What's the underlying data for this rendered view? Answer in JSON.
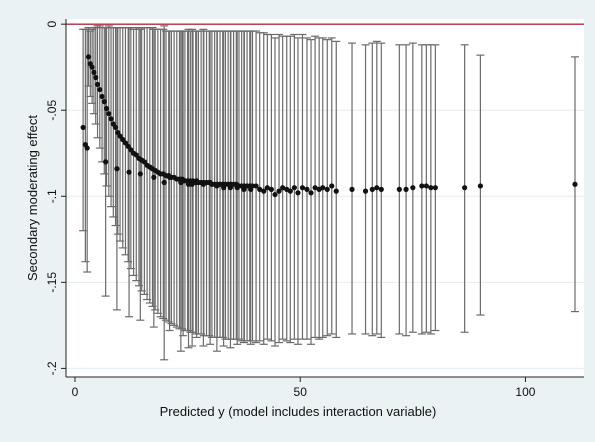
{
  "chart_data": {
    "type": "scatter",
    "title": "",
    "xlabel": "Predicted y (model includes interaction variable)",
    "ylabel": "Secondary moderating effect",
    "xlim": [
      -2,
      113
    ],
    "ylim": [
      -0.205,
      0.003
    ],
    "x_ticks": [
      {
        "value": 0,
        "label": "0"
      },
      {
        "value": 50,
        "label": "50"
      },
      {
        "value": 100,
        "label": "100"
      }
    ],
    "y_ticks": [
      {
        "value": 0,
        "label": "0"
      },
      {
        "value": -0.05,
        "label": "-.05"
      },
      {
        "value": -0.1,
        "label": "-.1"
      },
      {
        "value": -0.15,
        "label": "-.15"
      },
      {
        "value": -0.2,
        "label": "-.2"
      }
    ],
    "grid": true,
    "reference_line": {
      "y": 0,
      "color": "#b22b3e"
    },
    "colors": {
      "background": "#eaf2f3",
      "plot_area": "#ffffff",
      "error_bars": "#6b6b6b",
      "points": "#111111",
      "grid": "#e6ecee"
    },
    "series": [
      {
        "points": [
          [
            3.0,
            -0.019,
            -0.036,
            -0.002
          ],
          [
            3.4,
            -0.023,
            -0.042,
            -0.004
          ],
          [
            3.8,
            -0.025,
            -0.046,
            -0.003
          ],
          [
            4.2,
            -0.028,
            -0.052,
            -0.002
          ],
          [
            4.6,
            -0.031,
            -0.058,
            -0.002
          ],
          [
            5.0,
            -0.035,
            -0.066,
            -0.001
          ],
          [
            5.5,
            -0.038,
            -0.072,
            -0.001
          ],
          [
            6.0,
            -0.042,
            -0.08,
            -0.002
          ],
          [
            6.5,
            -0.045,
            -0.087,
            -0.002
          ],
          [
            7.0,
            -0.049,
            -0.094,
            -0.002
          ],
          [
            7.5,
            -0.052,
            -0.1,
            -0.001
          ],
          [
            8.0,
            -0.055,
            -0.106,
            -0.002
          ],
          [
            8.5,
            -0.058,
            -0.112,
            -0.002
          ],
          [
            9.0,
            -0.06,
            -0.117,
            -0.002
          ],
          [
            9.5,
            -0.063,
            -0.122,
            -0.002
          ],
          [
            10.0,
            -0.065,
            -0.126,
            -0.002
          ],
          [
            10.6,
            -0.067,
            -0.13,
            -0.002
          ],
          [
            11.2,
            -0.069,
            -0.134,
            -0.002
          ],
          [
            11.8,
            -0.071,
            -0.138,
            -0.002
          ],
          [
            12.4,
            -0.073,
            -0.142,
            -0.002
          ],
          [
            13.0,
            -0.075,
            -0.146,
            -0.003
          ],
          [
            13.6,
            -0.076,
            -0.149,
            -0.002
          ],
          [
            14.2,
            -0.078,
            -0.152,
            -0.002
          ],
          [
            14.8,
            -0.079,
            -0.155,
            -0.002
          ],
          [
            15.4,
            -0.08,
            -0.157,
            -0.002
          ],
          [
            16.0,
            -0.082,
            -0.16,
            -0.002
          ],
          [
            16.6,
            -0.083,
            -0.162,
            -0.002
          ],
          [
            17.2,
            -0.084,
            -0.164,
            -0.002
          ],
          [
            17.8,
            -0.085,
            -0.166,
            -0.003
          ],
          [
            18.4,
            -0.086,
            -0.168,
            -0.003
          ],
          [
            19.0,
            -0.087,
            -0.17,
            -0.003
          ],
          [
            19.6,
            -0.087,
            -0.171,
            -0.003
          ],
          [
            20.2,
            -0.088,
            -0.172,
            -0.004
          ],
          [
            20.8,
            -0.088,
            -0.173,
            -0.004
          ],
          [
            21.4,
            -0.089,
            -0.174,
            -0.004
          ],
          [
            22.0,
            -0.089,
            -0.175,
            -0.004
          ],
          [
            22.6,
            -0.09,
            -0.176,
            -0.004
          ],
          [
            23.2,
            -0.09,
            -0.177,
            -0.004
          ],
          [
            23.8,
            -0.09,
            -0.177,
            -0.004
          ],
          [
            24.4,
            -0.091,
            -0.178,
            -0.004
          ],
          [
            25.0,
            -0.091,
            -0.178,
            -0.004
          ],
          [
            25.6,
            -0.091,
            -0.179,
            -0.004
          ],
          [
            26.2,
            -0.091,
            -0.179,
            -0.004
          ],
          [
            26.8,
            -0.092,
            -0.18,
            -0.004
          ],
          [
            27.4,
            -0.092,
            -0.18,
            -0.004
          ],
          [
            28.0,
            -0.092,
            -0.18,
            -0.004
          ],
          [
            28.6,
            -0.092,
            -0.181,
            -0.004
          ],
          [
            29.2,
            -0.092,
            -0.181,
            -0.004
          ],
          [
            29.8,
            -0.092,
            -0.181,
            -0.004
          ],
          [
            30.4,
            -0.093,
            -0.182,
            -0.004
          ],
          [
            31.0,
            -0.093,
            -0.182,
            -0.004
          ],
          [
            31.6,
            -0.093,
            -0.182,
            -0.004
          ],
          [
            32.2,
            -0.093,
            -0.182,
            -0.004
          ],
          [
            32.8,
            -0.093,
            -0.182,
            -0.004
          ],
          [
            33.4,
            -0.093,
            -0.183,
            -0.004
          ],
          [
            34.0,
            -0.093,
            -0.183,
            -0.004
          ],
          [
            34.6,
            -0.093,
            -0.183,
            -0.004
          ],
          [
            35.2,
            -0.093,
            -0.183,
            -0.004
          ],
          [
            35.8,
            -0.093,
            -0.183,
            -0.004
          ],
          [
            36.4,
            -0.094,
            -0.183,
            -0.004
          ],
          [
            37.0,
            -0.094,
            -0.184,
            -0.004
          ],
          [
            37.6,
            -0.094,
            -0.184,
            -0.004
          ],
          [
            38.2,
            -0.094,
            -0.184,
            -0.004
          ],
          [
            38.8,
            -0.094,
            -0.184,
            -0.004
          ],
          [
            39.4,
            -0.094,
            -0.184,
            -0.004
          ],
          [
            1.8,
            -0.06,
            -0.12,
            -0.003
          ],
          [
            2.3,
            -0.07,
            -0.138,
            -0.003
          ],
          [
            2.7,
            -0.072,
            -0.144,
            -0.003
          ],
          [
            6.8,
            -0.08,
            -0.158,
            -0.002
          ],
          [
            9.3,
            -0.084,
            -0.166,
            -0.002
          ],
          [
            12.0,
            -0.086,
            -0.17,
            -0.002
          ],
          [
            14.5,
            -0.087,
            -0.172,
            -0.003
          ],
          [
            17.5,
            -0.089,
            -0.176,
            -0.003
          ],
          [
            21.0,
            -0.089,
            -0.178,
            -0.004
          ],
          [
            24.0,
            -0.091,
            -0.181,
            -0.004
          ],
          [
            27.0,
            -0.091,
            -0.182,
            -0.004
          ],
          [
            30.0,
            -0.092,
            -0.186,
            -0.004
          ],
          [
            19.8,
            -0.092,
            -0.195,
            -0.001
          ],
          [
            23.5,
            -0.092,
            -0.19,
            -0.004
          ],
          [
            25.2,
            -0.093,
            -0.188,
            -0.003
          ],
          [
            26.0,
            -0.093,
            -0.187,
            -0.003
          ],
          [
            28.5,
            -0.093,
            -0.187,
            -0.003
          ],
          [
            31.5,
            -0.094,
            -0.19,
            -0.004
          ],
          [
            33.0,
            -0.095,
            -0.187,
            -0.004
          ],
          [
            34.5,
            -0.095,
            -0.188,
            -0.004
          ],
          [
            36.0,
            -0.095,
            -0.186,
            -0.004
          ],
          [
            37.5,
            -0.096,
            -0.185,
            -0.004
          ],
          [
            39.0,
            -0.096,
            -0.186,
            -0.004
          ],
          [
            40.2,
            -0.094,
            -0.185,
            -0.004
          ],
          [
            41.0,
            -0.096,
            -0.184,
            -0.005
          ],
          [
            41.9,
            -0.097,
            -0.186,
            -0.005
          ],
          [
            42.7,
            -0.095,
            -0.183,
            -0.006
          ],
          [
            43.6,
            -0.096,
            -0.184,
            -0.006
          ],
          [
            44.4,
            -0.099,
            -0.187,
            -0.008
          ],
          [
            45.3,
            -0.097,
            -0.185,
            -0.006
          ],
          [
            46.1,
            -0.095,
            -0.183,
            -0.007
          ],
          [
            47.0,
            -0.096,
            -0.184,
            -0.007
          ],
          [
            47.8,
            -0.097,
            -0.185,
            -0.007
          ],
          [
            48.7,
            -0.095,
            -0.183,
            -0.006
          ],
          [
            49.5,
            -0.098,
            -0.186,
            -0.008
          ],
          [
            50.5,
            -0.095,
            -0.183,
            -0.006
          ],
          [
            51.5,
            -0.096,
            -0.183,
            -0.008
          ],
          [
            52.4,
            -0.098,
            -0.186,
            -0.009
          ],
          [
            53.3,
            -0.095,
            -0.182,
            -0.007
          ],
          [
            54.2,
            -0.096,
            -0.183,
            -0.008
          ],
          [
            55.0,
            -0.095,
            -0.182,
            -0.008
          ],
          [
            56.0,
            -0.096,
            -0.181,
            -0.009
          ],
          [
            57.0,
            -0.094,
            -0.18,
            -0.008
          ],
          [
            58.0,
            -0.097,
            -0.182,
            -0.01
          ],
          [
            61.5,
            -0.096,
            -0.18,
            -0.011
          ],
          [
            64.5,
            -0.097,
            -0.18,
            -0.012
          ],
          [
            66.0,
            -0.096,
            -0.181,
            -0.011
          ],
          [
            67.0,
            -0.095,
            -0.18,
            -0.01
          ],
          [
            68.0,
            -0.096,
            -0.182,
            -0.011
          ],
          [
            72.0,
            -0.096,
            -0.18,
            -0.012
          ],
          [
            73.5,
            -0.096,
            -0.181,
            -0.012
          ],
          [
            75.0,
            -0.095,
            -0.179,
            -0.011
          ],
          [
            77.0,
            -0.094,
            -0.18,
            -0.012
          ],
          [
            78.0,
            -0.094,
            -0.179,
            -0.012
          ],
          [
            79.0,
            -0.095,
            -0.18,
            -0.012
          ],
          [
            80.0,
            -0.095,
            -0.178,
            -0.012
          ],
          [
            86.5,
            -0.095,
            -0.179,
            -0.012
          ],
          [
            90.0,
            -0.094,
            -0.169,
            -0.018
          ],
          [
            111.0,
            -0.093,
            -0.167,
            -0.019
          ]
        ],
        "point_format": "x, y, ci_low, ci_high"
      }
    ]
  }
}
